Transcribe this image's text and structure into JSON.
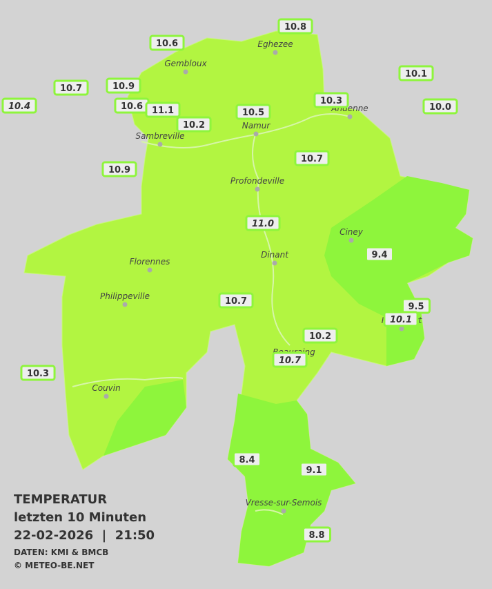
{
  "legend": {
    "title": "TEMPERATUR",
    "subtitle": "letzten 10 Minuten",
    "datetime": "22-02-2026  |  21:50",
    "source": "DATEN: KMI & BMCB",
    "copyright": "© METEO-BE.NET"
  },
  "cities": [
    "Eghezee",
    "Gembloux",
    "Andenne",
    "Namur",
    "Sambreville",
    "Profondeville",
    "Ciney",
    "Dinant",
    "Florennes",
    "Philippeville",
    "Rochefort",
    "Beauraing",
    "Couvin",
    "Vresse-sur-Semois"
  ],
  "stations": [
    "10.8",
    "10.6",
    "10.7",
    "10.9",
    "10.4",
    "10.1",
    "10.0",
    "10.6",
    "11.1",
    "10.2",
    "10.5",
    "10.3",
    "10.9",
    "10.7",
    "11.0",
    "9.4",
    "10.7",
    "9.5",
    "10.1",
    "10.2",
    "10.7",
    "10.3",
    "8.4",
    "9.1",
    "8.8"
  ]
}
